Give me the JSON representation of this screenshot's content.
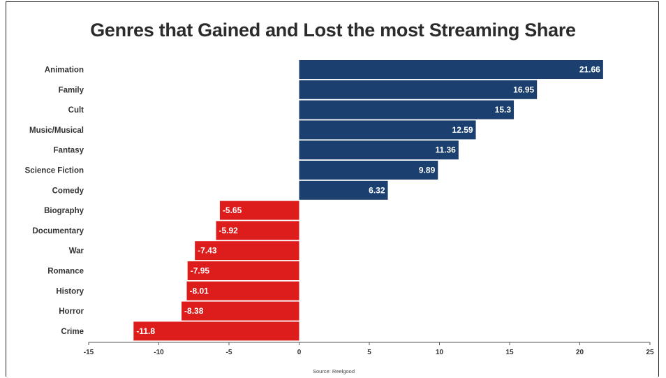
{
  "chart_data": {
    "type": "bar",
    "orientation": "horizontal",
    "title": "Genres that Gained and Lost the most Streaming Share",
    "source": "Source: Reelgood",
    "categories": [
      "Animation",
      "Family",
      "Cult",
      "Music/Musical",
      "Fantasy",
      "Science Fiction",
      "Comedy",
      "Biography",
      "Documentary",
      "War",
      "Romance",
      "History",
      "Horror",
      "Crime"
    ],
    "values": [
      21.66,
      16.95,
      15.3,
      12.59,
      11.36,
      9.89,
      6.32,
      -5.65,
      -5.92,
      -7.43,
      -7.95,
      -8.01,
      -8.38,
      -11.8
    ],
    "value_labels": [
      "21.66",
      "16.95",
      "15.3",
      "12.59",
      "11.36",
      "9.89",
      "6.32",
      "-5.65",
      "-5.92",
      "-7.43",
      "-7.95",
      "-8.01",
      "-8.38",
      "-11.8"
    ],
    "xlim": [
      -15,
      25
    ],
    "xticks": [
      "-15",
      "-10",
      "-5",
      "0",
      "5",
      "10",
      "15",
      "20",
      "25"
    ],
    "xtick_values": [
      -15,
      -10,
      -5,
      0,
      5,
      10,
      15,
      20,
      25
    ],
    "grid": false,
    "colors": {
      "positive": "#1b3f6e",
      "negative": "#dd1c1c"
    }
  }
}
